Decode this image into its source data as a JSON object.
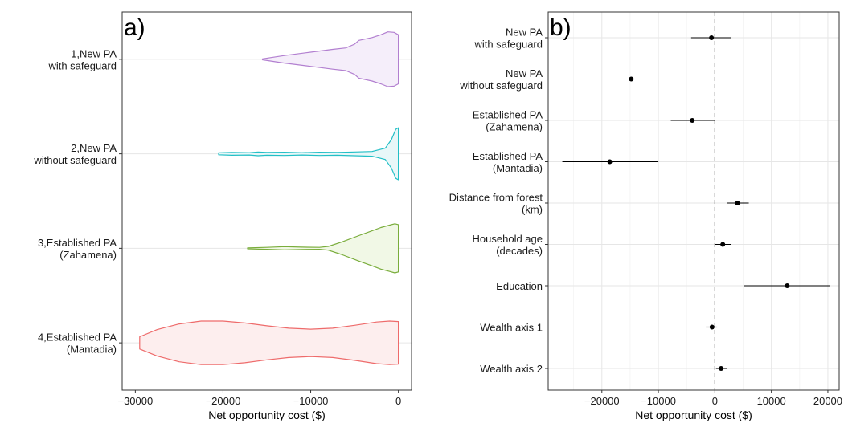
{
  "chart_data": [
    {
      "type": "violin",
      "panel_label": "a)",
      "xlabel": "Net opportunity cost ($)",
      "ylabel": "",
      "xlim": [
        -31500,
        1500
      ],
      "xticks": [
        -30000,
        -20000,
        -10000,
        0
      ],
      "xtick_labels": [
        "-30000",
        "-20000",
        "-10000",
        "0"
      ],
      "grid": true,
      "categories": [
        [
          "1,New PA",
          "with safeguard"
        ],
        [
          "2,New PA",
          "without safeguard"
        ],
        [
          "3,Established PA",
          "(Zahamena)"
        ],
        [
          "4,Established PA",
          "(Mantadia)"
        ]
      ],
      "series": [
        {
          "stroke": "#b27fd0",
          "fill": "#f5eefa",
          "profile": [
            [
              -15500,
              0.01
            ],
            [
              -13000,
              0.08
            ],
            [
              -10000,
              0.15
            ],
            [
              -7500,
              0.21
            ],
            [
              -6000,
              0.24
            ],
            [
              -5000,
              0.32
            ],
            [
              -4500,
              0.4
            ],
            [
              -3000,
              0.46
            ],
            [
              -2000,
              0.52
            ],
            [
              -1200,
              0.58
            ],
            [
              -500,
              0.57
            ],
            [
              0,
              0.52
            ]
          ]
        },
        {
          "stroke": "#22bfc6",
          "fill": "#e8f7f8",
          "profile": [
            [
              -20500,
              0.02
            ],
            [
              -19000,
              0.03
            ],
            [
              -17000,
              0.025
            ],
            [
              -16000,
              0.04
            ],
            [
              -15000,
              0.03
            ],
            [
              -13000,
              0.035
            ],
            [
              -11000,
              0.025
            ],
            [
              -9000,
              0.035
            ],
            [
              -7000,
              0.03
            ],
            [
              -5000,
              0.04
            ],
            [
              -3000,
              0.05
            ],
            [
              -1500,
              0.12
            ],
            [
              -800,
              0.3
            ],
            [
              -300,
              0.52
            ],
            [
              0,
              0.55
            ]
          ]
        },
        {
          "stroke": "#7aad3c",
          "fill": "#f1f8e6",
          "profile": [
            [
              -17200,
              0.01
            ],
            [
              -15000,
              0.02
            ],
            [
              -13000,
              0.035
            ],
            [
              -11000,
              0.025
            ],
            [
              -9000,
              0.02
            ],
            [
              -8000,
              0.04
            ],
            [
              -6500,
              0.13
            ],
            [
              -4500,
              0.27
            ],
            [
              -3000,
              0.37
            ],
            [
              -2000,
              0.44
            ],
            [
              -1000,
              0.49
            ],
            [
              -400,
              0.52
            ],
            [
              0,
              0.5
            ]
          ]
        },
        {
          "stroke": "#ee6b6b",
          "fill": "#fdeeee",
          "profile": [
            [
              -29500,
              0.13
            ],
            [
              -27500,
              0.28
            ],
            [
              -25000,
              0.4
            ],
            [
              -22500,
              0.46
            ],
            [
              -20000,
              0.46
            ],
            [
              -17500,
              0.42
            ],
            [
              -15000,
              0.36
            ],
            [
              -12500,
              0.31
            ],
            [
              -10000,
              0.29
            ],
            [
              -7500,
              0.31
            ],
            [
              -5000,
              0.37
            ],
            [
              -2500,
              0.44
            ],
            [
              -1000,
              0.46
            ],
            [
              0,
              0.45
            ]
          ]
        }
      ]
    },
    {
      "type": "forest",
      "panel_label": "b)",
      "xlabel": "Net opportunity cost ($)",
      "ylabel": "",
      "xlim": [
        -29500,
        22000
      ],
      "xticks": [
        -20000,
        -10000,
        0,
        10000,
        20000
      ],
      "xtick_labels": [
        "-20000",
        "-10000",
        "0",
        "10000",
        "20000"
      ],
      "grid": true,
      "reference_line": 0,
      "rows": [
        {
          "label": [
            "New PA",
            "with safeguard"
          ],
          "estimate": -600,
          "lower": -4200,
          "upper": 2800
        },
        {
          "label": [
            "New PA",
            "without safeguard"
          ],
          "estimate": -14800,
          "lower": -22800,
          "upper": -6800
        },
        {
          "label": [
            "Established PA",
            "(Zahamena)"
          ],
          "estimate": -4000,
          "lower": -7800,
          "upper": 0
        },
        {
          "label": [
            "Established PA",
            "(Mantadia)"
          ],
          "estimate": -18600,
          "lower": -27000,
          "upper": -10000
        },
        {
          "label": [
            "Distance from forest",
            "(km)"
          ],
          "estimate": 4000,
          "lower": 2200,
          "upper": 6000
        },
        {
          "label": [
            "Household age",
            "(decades)"
          ],
          "estimate": 1400,
          "lower": 0,
          "upper": 2800
        },
        {
          "label": [
            "Education"
          ],
          "estimate": 12800,
          "lower": 5200,
          "upper": 20400
        },
        {
          "label": [
            "Wealth axis 1"
          ],
          "estimate": -500,
          "lower": -1600,
          "upper": 400
        },
        {
          "label": [
            "Wealth axis 2"
          ],
          "estimate": 1100,
          "lower": 200,
          "upper": 2200
        }
      ]
    }
  ]
}
